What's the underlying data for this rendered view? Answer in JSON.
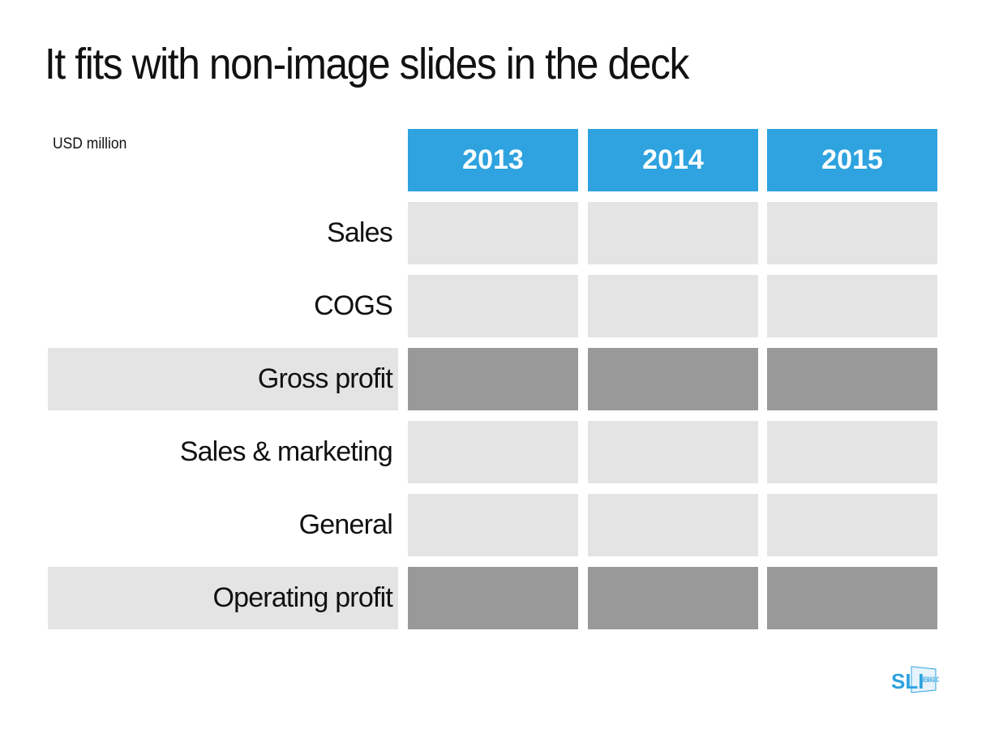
{
  "slide": {
    "title": "It fits with non-image slides in the deck",
    "unit_label": "USD million"
  },
  "table": {
    "columns": [
      "2013",
      "2014",
      "2015"
    ],
    "rows": [
      {
        "label": "Sales",
        "highlight": false
      },
      {
        "label": "COGS",
        "highlight": false
      },
      {
        "label": "Gross profit",
        "highlight": true
      },
      {
        "label": "Sales & marketing",
        "highlight": false
      },
      {
        "label": "General",
        "highlight": false
      },
      {
        "label": "Operating profit",
        "highlight": true
      }
    ]
  },
  "logo": {
    "text_main": "SLI",
    "text_sub": "DEMAGIC",
    "icon": "slidemagic-logo"
  },
  "colors": {
    "header": "#2ea3df",
    "cell": "#e4e4e4",
    "cell_highlight": "#999999",
    "logo": "#2ea3df"
  }
}
